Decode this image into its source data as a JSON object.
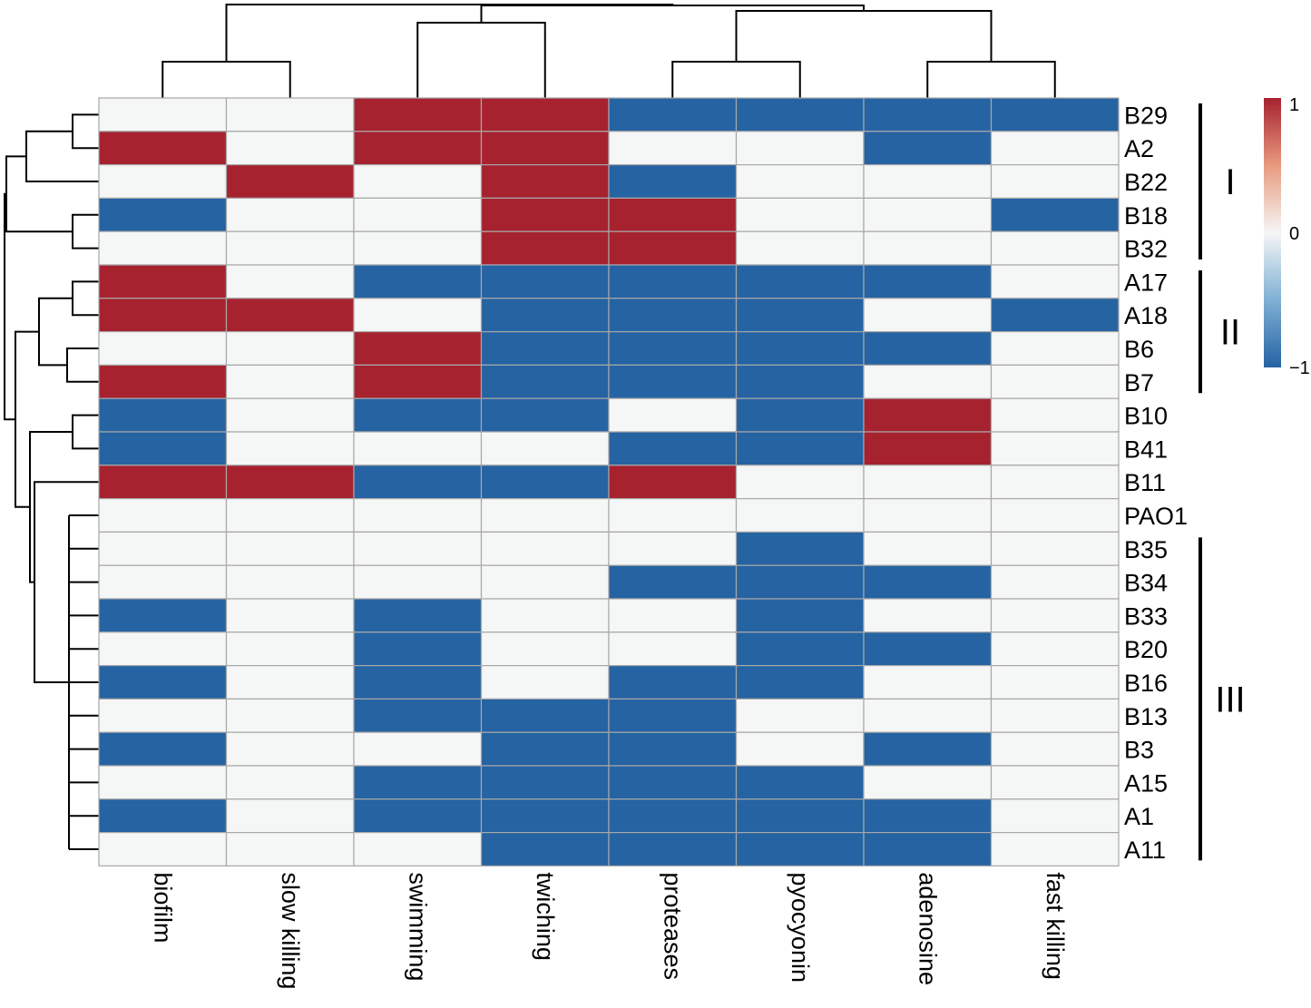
{
  "chart_data": {
    "type": "heatmap",
    "title": "",
    "columns": [
      "biofilm",
      "slow killing",
      "swimming",
      "twiching",
      "proteases",
      "pyocyonin",
      "adenosine",
      "fast killing"
    ],
    "rows": [
      "B29",
      "A2",
      "B22",
      "B18",
      "B32",
      "A17",
      "A18",
      "B6",
      "B7",
      "B10",
      "B41",
      "B11",
      "PAO1",
      "B35",
      "B34",
      "B33",
      "B20",
      "B16",
      "B13",
      "B3",
      "A15",
      "A1",
      "A11"
    ],
    "values": [
      [
        0,
        0,
        1,
        1,
        -1,
        -1,
        -1,
        -1
      ],
      [
        1,
        0,
        1,
        1,
        0,
        0,
        -1,
        0
      ],
      [
        0,
        1,
        0,
        1,
        -1,
        0,
        0,
        0
      ],
      [
        -1,
        0,
        0,
        1,
        1,
        0,
        0,
        -1
      ],
      [
        0,
        0,
        0,
        1,
        1,
        0,
        0,
        0
      ],
      [
        1,
        0,
        -1,
        -1,
        -1,
        -1,
        -1,
        0
      ],
      [
        1,
        1,
        0,
        -1,
        -1,
        -1,
        0,
        -1
      ],
      [
        0,
        0,
        1,
        -1,
        -1,
        -1,
        -1,
        0
      ],
      [
        1,
        0,
        1,
        -1,
        -1,
        -1,
        0,
        0
      ],
      [
        -1,
        0,
        -1,
        -1,
        0,
        -1,
        1,
        0
      ],
      [
        -1,
        0,
        0,
        0,
        -1,
        -1,
        1,
        0
      ],
      [
        1,
        1,
        -1,
        -1,
        1,
        0,
        0,
        0
      ],
      [
        0,
        0,
        0,
        0,
        0,
        0,
        0,
        0
      ],
      [
        0,
        0,
        0,
        0,
        0,
        -1,
        0,
        0
      ],
      [
        0,
        0,
        0,
        0,
        -1,
        -1,
        -1,
        0
      ],
      [
        -1,
        0,
        -1,
        0,
        0,
        -1,
        0,
        0
      ],
      [
        0,
        0,
        -1,
        0,
        0,
        -1,
        -1,
        0
      ],
      [
        -1,
        0,
        -1,
        0,
        -1,
        -1,
        0,
        0
      ],
      [
        0,
        0,
        -1,
        -1,
        -1,
        0,
        0,
        0
      ],
      [
        -1,
        0,
        0,
        -1,
        -1,
        0,
        -1,
        0
      ],
      [
        0,
        0,
        -1,
        -1,
        -1,
        -1,
        0,
        0
      ],
      [
        -1,
        0,
        -1,
        -1,
        -1,
        -1,
        -1,
        0
      ],
      [
        0,
        0,
        0,
        -1,
        -1,
        -1,
        -1,
        0
      ]
    ],
    "value_range": [
      -1,
      1
    ],
    "colorscale": {
      "low": "#2563a3",
      "mid": "#f5f6f6",
      "high": "#a6222f"
    },
    "legend": {
      "ticks": [
        "1",
        "0",
        "−1"
      ],
      "position": "top-right"
    },
    "row_groups": [
      {
        "label": "I",
        "rows": [
          "B29",
          "A2",
          "B22",
          "B18",
          "B32"
        ]
      },
      {
        "label": "II",
        "rows": [
          "A17",
          "A18",
          "B6",
          "B7"
        ]
      },
      {
        "label": "III",
        "rows": [
          "B35",
          "B34",
          "B33",
          "B20",
          "B16",
          "B13",
          "B3",
          "A15",
          "A1",
          "A11"
        ]
      }
    ]
  }
}
